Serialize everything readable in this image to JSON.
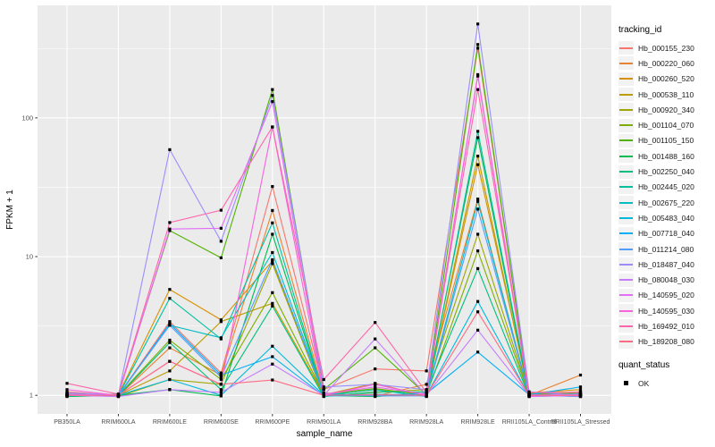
{
  "figure": {
    "y_axis_title": "FPKM + 1",
    "x_axis_title": "sample_name",
    "panel_bg": "#EBEBEB",
    "grid_color": "#FFFFFF",
    "tick_color": "#333333",
    "tick_label_color": "#4D4D4D",
    "point_color": "#000000"
  },
  "legend": {
    "tracking_title": "tracking_id",
    "quant_title": "quant_status",
    "quant_items": [
      {
        "label": "OK",
        "marker": "black-filled-square"
      }
    ]
  },
  "chart_data": {
    "type": "line",
    "title": "",
    "xlabel": "sample_name",
    "ylabel": "FPKM + 1",
    "x_type": "categorical",
    "y_scale": "log10",
    "y_major_ticks": [
      1,
      10,
      100
    ],
    "y_tick_labels": [
      "1",
      "10",
      "100"
    ],
    "y_minor_gridlines": [
      3.162,
      31.623,
      316.228
    ],
    "ylim_log10": [
      -0.134,
      2.811
    ],
    "grid": true,
    "legend_position": "right",
    "point_marker": "filled-square",
    "categories": [
      "PB350LA",
      "RRIM600LA",
      "RRIM600LE",
      "RRIM600SE",
      "RRIM600PE",
      "RRIM901LA",
      "RRIM928BA",
      "RRIM928LA",
      "RRIM928LE",
      "RRII105LA_Control",
      "RRII105LA_Stressed"
    ],
    "series": [
      {
        "name": "Hb_000155_230",
        "color": "#F8766D",
        "values": [
          1.06,
          1.0,
          3.4,
          1.45,
          32.0,
          1.1,
          1.55,
          1.5,
          318,
          1.02,
          1.06
        ]
      },
      {
        "name": "Hb_000220_060",
        "color": "#EA8331",
        "values": [
          1.02,
          0.99,
          2.2,
          1.4,
          21.5,
          1.04,
          0.99,
          1.2,
          26.0,
          1.0,
          1.4
        ]
      },
      {
        "name": "Hb_000260_520",
        "color": "#D89000",
        "values": [
          1.0,
          1.01,
          5.8,
          3.5,
          9.3,
          1.0,
          1.1,
          1.02,
          46.0,
          1.04,
          1.1
        ]
      },
      {
        "name": "Hb_000538_110",
        "color": "#BD9C00",
        "values": [
          0.99,
          1.0,
          1.5,
          3.4,
          4.6,
          1.01,
          1.22,
          0.99,
          53.0,
          0.99,
          1.02
        ]
      },
      {
        "name": "Hb_000920_340",
        "color": "#9DA700",
        "values": [
          1.01,
          0.98,
          1.3,
          1.2,
          8.9,
          0.99,
          1.05,
          1.1,
          14.5,
          1.01,
          0.98
        ]
      },
      {
        "name": "Hb_001104_070",
        "color": "#7CAE00",
        "values": [
          1.03,
          1.0,
          2.5,
          1.3,
          5.5,
          1.02,
          1.12,
          1.0,
          11.0,
          1.0,
          1.05
        ]
      },
      {
        "name": "Hb_001105_150",
        "color": "#4FB300",
        "values": [
          1.0,
          1.02,
          15.4,
          9.8,
          160,
          1.1,
          2.2,
          1.01,
          338,
          1.03,
          1.0
        ]
      },
      {
        "name": "Hb_001488_160",
        "color": "#00BC51",
        "values": [
          0.98,
          1.0,
          1.1,
          0.99,
          14.5,
          1.0,
          0.98,
          1.04,
          72.0,
          1.0,
          1.03
        ]
      },
      {
        "name": "Hb_002250_040",
        "color": "#00BF7A",
        "values": [
          1.0,
          0.99,
          2.4,
          1.1,
          4.4,
          0.98,
          1.06,
          1.06,
          8.2,
          0.98,
          1.0
        ]
      },
      {
        "name": "Hb_002445_020",
        "color": "#00C19F",
        "values": [
          1.02,
          1.0,
          5.0,
          2.55,
          17.5,
          1.0,
          1.1,
          0.98,
          80.0,
          1.02,
          0.99
        ]
      },
      {
        "name": "Hb_002675_220",
        "color": "#00BFC4",
        "values": [
          0.99,
          1.01,
          3.2,
          2.6,
          10.7,
          1.03,
          1.0,
          1.0,
          25.0,
          1.0,
          1.01
        ]
      },
      {
        "name": "Hb_005483_040",
        "color": "#00BADE",
        "values": [
          1.0,
          1.0,
          1.3,
          1.0,
          2.26,
          1.0,
          1.02,
          1.0,
          4.75,
          0.99,
          1.0
        ]
      },
      {
        "name": "Hb_007718_040",
        "color": "#00B0F6",
        "values": [
          1.01,
          0.99,
          3.3,
          1.4,
          1.9,
          0.99,
          1.0,
          1.03,
          2.05,
          1.01,
          1.15
        ]
      },
      {
        "name": "Hb_011214_080",
        "color": "#529EFF",
        "values": [
          1.0,
          1.0,
          3.2,
          1.35,
          9.5,
          1.01,
          0.99,
          0.99,
          22.0,
          1.0,
          0.98
        ]
      },
      {
        "name": "Hb_018487_040",
        "color": "#9A8EFF",
        "values": [
          1.04,
          1.01,
          59.0,
          12.9,
          145,
          1.15,
          1.2,
          1.1,
          475,
          1.06,
          1.0
        ]
      },
      {
        "name": "Hb_080048_030",
        "color": "#C77CFF",
        "values": [
          1.0,
          0.98,
          1.1,
          1.05,
          1.68,
          1.0,
          2.55,
          1.0,
          2.95,
          1.0,
          1.02
        ]
      },
      {
        "name": "Hb_140595_020",
        "color": "#E36EF6",
        "values": [
          1.02,
          1.0,
          15.8,
          16.0,
          131,
          1.02,
          1.15,
          1.02,
          200,
          0.98,
          1.0
        ]
      },
      {
        "name": "Hb_140595_030",
        "color": "#F962DD",
        "values": [
          1.1,
          1.0,
          1.76,
          1.2,
          86.0,
          1.0,
          1.2,
          1.0,
          205,
          1.01,
          0.99
        ]
      },
      {
        "name": "Hb_169492_010",
        "color": "#FF65AC",
        "values": [
          1.22,
          1.02,
          17.6,
          21.6,
          86.0,
          1.3,
          3.35,
          1.05,
          160,
          1.05,
          1.05
        ]
      },
      {
        "name": "Hb_189208_080",
        "color": "#FF6B83",
        "values": [
          1.0,
          1.0,
          1.76,
          1.2,
          1.29,
          1.0,
          1.01,
          1.0,
          4.0,
          1.0,
          1.0
        ]
      }
    ]
  }
}
